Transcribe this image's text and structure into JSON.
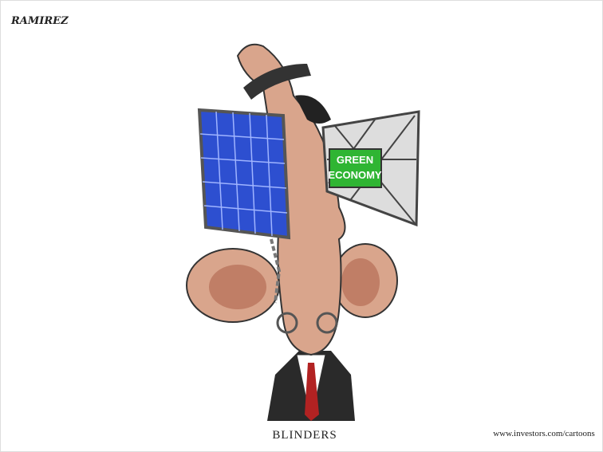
{
  "signature": "RAMIREZ",
  "sign_text": [
    "GREEN",
    "ECONOMY"
  ],
  "caption": "BLINDERS",
  "url": "www.investors.com/cartoons"
}
